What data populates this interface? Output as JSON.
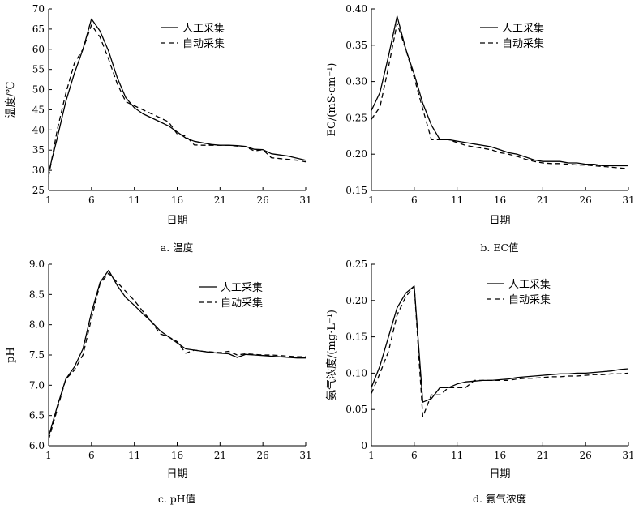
{
  "chart_data": [
    {
      "id": "a",
      "type": "line",
      "caption": "a.  温度",
      "xlabel": "日期",
      "ylabel": "温度/℃",
      "xticks": [
        1,
        6,
        11,
        16,
        21,
        26,
        31
      ],
      "yticks": [
        25,
        30,
        35,
        40,
        45,
        50,
        55,
        60,
        65,
        70
      ],
      "xlim": [
        1,
        31
      ],
      "ylim": [
        25,
        70
      ],
      "legend_position": "top-right",
      "series": [
        {
          "name": "人工采集",
          "style": "solid",
          "x": [
            1,
            2,
            3,
            4,
            5,
            6,
            7,
            8,
            9,
            10,
            11,
            12,
            13,
            14,
            15,
            16,
            17,
            18,
            19,
            20,
            21,
            22,
            23,
            24,
            25,
            26,
            27,
            28,
            29,
            30,
            31
          ],
          "y": [
            29.5,
            38,
            47,
            54,
            60,
            67.5,
            64.5,
            59.5,
            53,
            48,
            45.5,
            44,
            43,
            42,
            41,
            39.5,
            38,
            37.2,
            36.8,
            36.4,
            36.2,
            36.2,
            36.1,
            35.9,
            35.2,
            35.1,
            34.1,
            33.8,
            33.5,
            33,
            32.5
          ]
        },
        {
          "name": "自动采集",
          "style": "dashed",
          "x": [
            1,
            2,
            3,
            4,
            5,
            6,
            7,
            8,
            9,
            10,
            11,
            12,
            13,
            14,
            15,
            16,
            17,
            18,
            19,
            20,
            21,
            22,
            23,
            24,
            25,
            26,
            27,
            28,
            29,
            30,
            31
          ],
          "y": [
            28.5,
            40,
            49,
            56.5,
            60,
            66,
            63,
            57.5,
            51.5,
            47,
            46,
            45,
            44,
            43,
            42,
            39,
            38.5,
            36.3,
            36.2,
            36.2,
            36.2,
            36.2,
            36,
            35.8,
            34.8,
            35.1,
            33.1,
            32.9,
            32.7,
            32.5,
            32.1
          ]
        }
      ]
    },
    {
      "id": "b",
      "type": "line",
      "caption": "b.  EC值",
      "xlabel": "日期",
      "ylabel": "EC/(mS·cm⁻¹)",
      "xticks": [
        1,
        6,
        11,
        16,
        21,
        26,
        31
      ],
      "yticks": [
        0.15,
        0.2,
        0.25,
        0.3,
        0.35,
        0.4
      ],
      "ytick_labels": [
        "0.15",
        "0.20",
        "0.25",
        "0.30",
        "0.35",
        "0.40"
      ],
      "xlim": [
        1,
        31
      ],
      "ylim": [
        0.15,
        0.4
      ],
      "legend_position": "top-right",
      "series": [
        {
          "name": "人工采集",
          "style": "solid",
          "x": [
            1,
            2,
            3,
            4,
            5,
            6,
            7,
            8,
            9,
            10,
            11,
            12,
            13,
            14,
            15,
            16,
            17,
            18,
            19,
            20,
            21,
            22,
            23,
            24,
            25,
            26,
            27,
            28,
            29,
            30,
            31
          ],
          "y": [
            0.26,
            0.285,
            0.335,
            0.39,
            0.345,
            0.31,
            0.27,
            0.24,
            0.22,
            0.22,
            0.218,
            0.216,
            0.214,
            0.212,
            0.21,
            0.206,
            0.202,
            0.2,
            0.196,
            0.192,
            0.19,
            0.19,
            0.19,
            0.188,
            0.188,
            0.186,
            0.186,
            0.184,
            0.184,
            0.184,
            0.184
          ]
        },
        {
          "name": "自动采集",
          "style": "dashed",
          "x": [
            1,
            2,
            3,
            4,
            5,
            6,
            7,
            8,
            9,
            10,
            11,
            12,
            13,
            14,
            15,
            16,
            17,
            18,
            19,
            20,
            21,
            22,
            23,
            24,
            25,
            26,
            27,
            28,
            29,
            30,
            31
          ],
          "y": [
            0.248,
            0.265,
            0.32,
            0.38,
            0.345,
            0.305,
            0.262,
            0.22,
            0.22,
            0.22,
            0.216,
            0.212,
            0.21,
            0.208,
            0.206,
            0.202,
            0.2,
            0.197,
            0.193,
            0.19,
            0.188,
            0.187,
            0.187,
            0.186,
            0.185,
            0.185,
            0.184,
            0.183,
            0.182,
            0.181,
            0.18
          ]
        }
      ]
    },
    {
      "id": "c",
      "type": "line",
      "caption": "c.  pH值",
      "xlabel": "日期",
      "ylabel": "pH",
      "xticks": [
        1,
        6,
        11,
        16,
        21,
        26,
        31
      ],
      "yticks": [
        6.0,
        6.5,
        7.0,
        7.5,
        8.0,
        8.5,
        9.0
      ],
      "ytick_labels": [
        "6.0",
        "6.5",
        "7.0",
        "7.5",
        "8.0",
        "8.5",
        "9.0"
      ],
      "xlim": [
        1,
        31
      ],
      "ylim": [
        6.0,
        9.0
      ],
      "legend_position": "top-right",
      "series": [
        {
          "name": "人工采集",
          "style": "solid",
          "x": [
            1,
            2,
            3,
            4,
            5,
            6,
            7,
            8,
            9,
            10,
            11,
            12,
            13,
            14,
            15,
            16,
            17,
            18,
            19,
            20,
            21,
            22,
            23,
            24,
            25,
            26,
            27,
            28,
            29,
            30,
            31
          ],
          "y": [
            6.15,
            6.65,
            7.1,
            7.3,
            7.6,
            8.2,
            8.7,
            8.9,
            8.65,
            8.45,
            8.32,
            8.18,
            8.05,
            7.9,
            7.8,
            7.7,
            7.6,
            7.58,
            7.56,
            7.54,
            7.53,
            7.52,
            7.46,
            7.51,
            7.5,
            7.49,
            7.48,
            7.47,
            7.46,
            7.45,
            7.45
          ]
        },
        {
          "name": "自动采集",
          "style": "dashed",
          "x": [
            1,
            2,
            3,
            4,
            5,
            6,
            7,
            8,
            9,
            10,
            11,
            12,
            13,
            14,
            15,
            16,
            17,
            18,
            19,
            20,
            21,
            22,
            23,
            24,
            25,
            26,
            27,
            28,
            29,
            30,
            31
          ],
          "y": [
            6.1,
            6.6,
            7.1,
            7.25,
            7.5,
            8.1,
            8.68,
            8.85,
            8.7,
            8.55,
            8.4,
            8.22,
            8.05,
            7.85,
            7.8,
            7.72,
            7.53,
            7.58,
            7.56,
            7.55,
            7.54,
            7.56,
            7.5,
            7.52,
            7.51,
            7.5,
            7.5,
            7.49,
            7.48,
            7.47,
            7.47
          ]
        }
      ]
    },
    {
      "id": "d",
      "type": "line",
      "caption": "d.  氨气浓度",
      "xlabel": "日期",
      "ylabel": "氨气浓度/(mg·L⁻¹)",
      "xticks": [
        1,
        6,
        11,
        16,
        21,
        26,
        31
      ],
      "yticks": [
        0,
        0.05,
        0.1,
        0.15,
        0.2,
        0.25
      ],
      "ytick_labels": [
        "0",
        "0.05",
        "0.10",
        "0.15",
        "0.20",
        "0.25"
      ],
      "xlim": [
        1,
        31
      ],
      "ylim": [
        0,
        0.25
      ],
      "legend_position": "top-right",
      "series": [
        {
          "name": "人工采集",
          "style": "solid",
          "x": [
            1,
            2,
            3,
            4,
            5,
            6,
            7,
            8,
            9,
            10,
            11,
            12,
            13,
            14,
            15,
            16,
            17,
            18,
            19,
            20,
            21,
            22,
            23,
            24,
            25,
            26,
            27,
            28,
            29,
            30,
            31
          ],
          "y": [
            0.08,
            0.11,
            0.15,
            0.19,
            0.21,
            0.22,
            0.06,
            0.065,
            0.08,
            0.08,
            0.085,
            0.088,
            0.089,
            0.09,
            0.09,
            0.091,
            0.092,
            0.094,
            0.095,
            0.096,
            0.097,
            0.098,
            0.099,
            0.099,
            0.1,
            0.1,
            0.101,
            0.102,
            0.103,
            0.105,
            0.106
          ]
        },
        {
          "name": "自动采集",
          "style": "dashed",
          "x": [
            1,
            2,
            3,
            4,
            5,
            6,
            7,
            8,
            9,
            10,
            11,
            12,
            13,
            14,
            15,
            16,
            17,
            18,
            19,
            20,
            21,
            22,
            23,
            24,
            25,
            26,
            27,
            28,
            29,
            30,
            31
          ],
          "y": [
            0.072,
            0.1,
            0.13,
            0.18,
            0.205,
            0.22,
            0.04,
            0.07,
            0.07,
            0.08,
            0.08,
            0.08,
            0.09,
            0.09,
            0.09,
            0.09,
            0.09,
            0.092,
            0.093,
            0.093,
            0.094,
            0.095,
            0.095,
            0.096,
            0.096,
            0.097,
            0.098,
            0.098,
            0.099,
            0.099,
            0.1
          ]
        }
      ]
    }
  ]
}
